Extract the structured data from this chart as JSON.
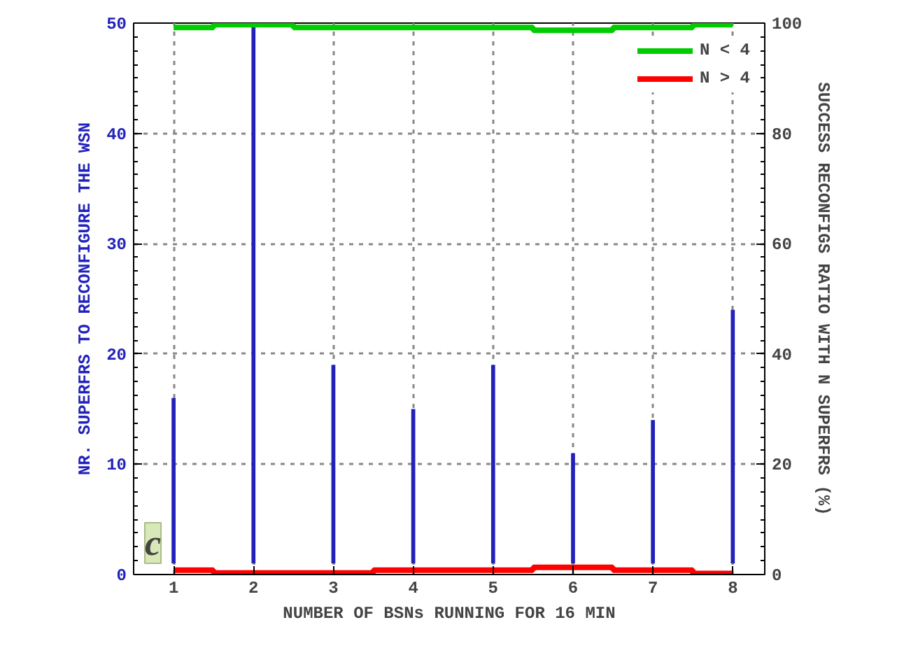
{
  "chart_data": {
    "type": "step",
    "xlabel": "NUMBER OF BSNs RUNNING FOR 16 MIN",
    "ylabel": "NR. SUPERFRS TO RECONFIGURE THE WSN",
    "y2label": "SUCCESS RECONFIGS RATIO WITH N SUPERFRS (%)",
    "x": [
      1,
      2,
      3,
      4,
      5,
      6,
      7,
      8
    ],
    "xlim": [
      0.5,
      8.4
    ],
    "xticks": [
      1,
      2,
      3,
      4,
      5,
      6,
      7,
      8
    ],
    "ylim": [
      0,
      50
    ],
    "yticks": [
      0,
      10,
      20,
      30,
      40,
      50
    ],
    "y2lim": [
      0,
      100
    ],
    "y2ticks": [
      0,
      20,
      40,
      60,
      80,
      100
    ],
    "grid": true,
    "legend": "top right",
    "annotations": [
      "c"
    ],
    "series": [
      {
        "type": "bar",
        "color": "#2222bb",
        "base": [
          1,
          1,
          1,
          1,
          1,
          1,
          1,
          1
        ],
        "values": [
          15,
          49,
          18,
          14,
          18,
          10,
          13,
          23
        ]
      },
      {
        "name": "N < 4",
        "axis": "y2",
        "color": "#00cc00",
        "values": [
          99.2,
          99.7,
          99.2,
          99.2,
          99.2,
          98.7,
          99.2,
          99.7
        ]
      },
      {
        "name": "N > 4",
        "axis": "y2",
        "color": "#ff0000",
        "values": [
          0.8,
          0.3,
          0.3,
          0.8,
          0.8,
          1.3,
          0.8,
          0.2
        ]
      }
    ]
  }
}
